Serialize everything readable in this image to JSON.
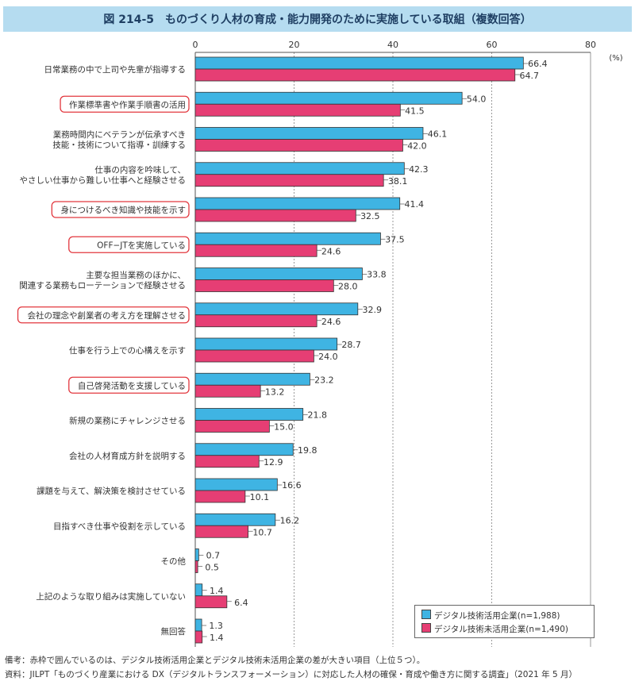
{
  "title": "図 214-5　ものづくり人材の育成・能力開発のために実施している取組（複数回答）",
  "notes": {
    "remarks": "備考：赤枠で囲んでいるのは、デジタル技術活用企業とデジタル技術未活用企業の差が大きい項目（上位５つ）。",
    "source": "資料：JILPT「ものづくり産業における DX（デジタルトランスフォーメーション）に対応した人材の確保・育成や働き方に関する調査」（2021 年 5 月）"
  },
  "colors": {
    "series_1": "#3fb4e3",
    "series_2": "#e63e74",
    "highlight_frame": "#e2383f",
    "title_bar": "#b5dcf0",
    "title_text": "#1f3f63"
  },
  "chart_data": {
    "type": "bar",
    "orientation": "horizontal",
    "title": "図 214-5　ものづくり人材の育成・能力開発のために実施している取組（複数回答）",
    "unit": "(%)",
    "xlim": [
      0,
      80
    ],
    "x_ticks": [
      0,
      20,
      40,
      60,
      80
    ],
    "grid": "vertical",
    "legend_position": "bottom-right",
    "categories": [
      "日常業務の中で上司や先輩が指導する",
      "作業標準書や作業手順書の活用",
      "業務時間内にベテランが伝承すべき\n技能・技術について指導・訓練する",
      "仕事の内容を吟味して、\nやさしい仕事から難しい仕事へと経験させる",
      "身につけるべき知識や技能を示す",
      "OFF−JTを実施している",
      "主要な担当業務のほかに、\n関連する業務もローテーションで経験させる",
      "会社の理念や創業者の考え方を理解させる",
      "仕事を行う上での心構えを示す",
      "自己啓発活動を支援している",
      "新規の業務にチャレンジさせる",
      "会社の人材育成方針を説明する",
      "課題を与えて、解決策を検討させている",
      "目指すべき仕事や役割を示している",
      "その他",
      "上記のような取り組みは実施していない",
      "無回答"
    ],
    "highlighted": [
      false,
      true,
      false,
      false,
      true,
      true,
      false,
      true,
      false,
      true,
      false,
      false,
      false,
      false,
      false,
      false,
      false
    ],
    "series": [
      {
        "name": "デジタル技術活用企業(n=1,988)",
        "values": [
          66.4,
          54.0,
          46.1,
          42.3,
          41.4,
          37.5,
          33.8,
          32.9,
          28.7,
          23.2,
          21.8,
          19.8,
          16.6,
          16.2,
          0.7,
          1.4,
          1.3
        ]
      },
      {
        "name": "デジタル技術未活用企業(n=1,490)",
        "values": [
          64.7,
          41.5,
          42.0,
          38.1,
          32.5,
          24.6,
          28.0,
          24.6,
          24.0,
          13.2,
          15.0,
          12.9,
          10.1,
          10.7,
          0.5,
          6.4,
          1.4
        ]
      }
    ]
  }
}
